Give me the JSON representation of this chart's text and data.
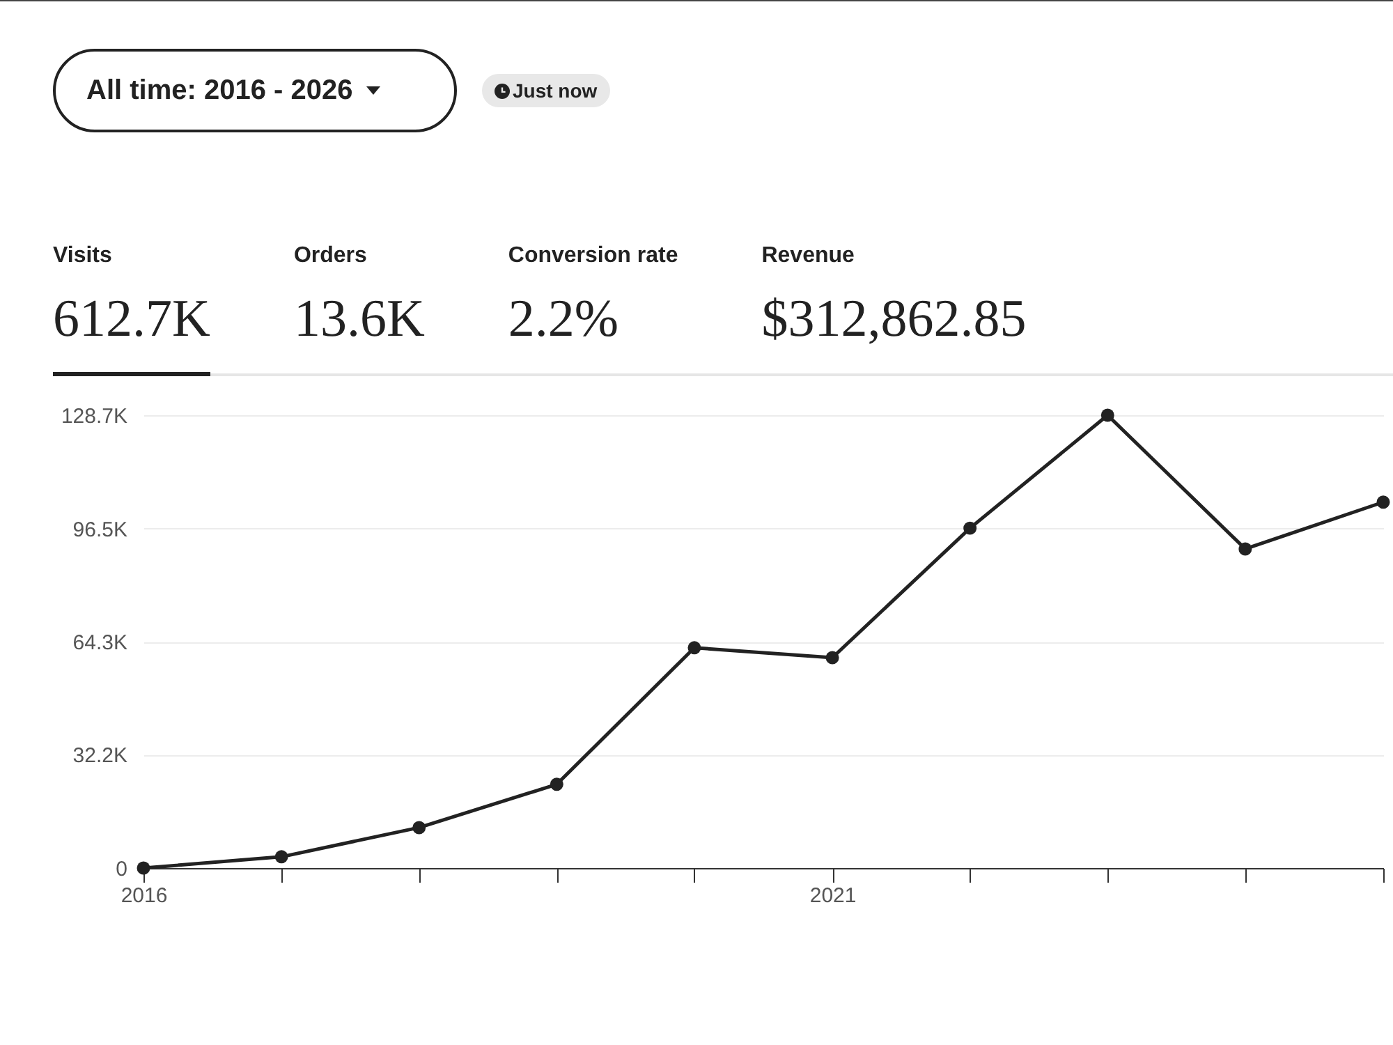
{
  "chart_data": [
    {
      "type": "other",
      "annotations": [
        "All time: 2016 - 2026",
        "Just now",
        "Visits",
        "612.7K",
        "Orders",
        "13.6K",
        "Conversion rate",
        "2.2%",
        "Revenue",
        "$312,862.85"
      ]
    },
    {
      "type": "line",
      "x": [
        "2016",
        "2017",
        "2018",
        "2019",
        "2020",
        "2021",
        "2022",
        "2023",
        "2024",
        "2025"
      ],
      "series": [
        {
          "color": "#222222",
          "values": [
            0,
            3200,
            11500,
            23800,
            62600,
            59800,
            96600,
            128700,
            90700,
            104000
          ]
        }
      ],
      "xlim": [
        "2016",
        "2025"
      ],
      "xticks": [
        {
          "value": "2016",
          "label": "2016"
        },
        {
          "value": "2017",
          "label": null
        },
        {
          "value": "2018",
          "label": null
        },
        {
          "value": "2019",
          "label": null
        },
        {
          "value": "2020",
          "label": null
        },
        {
          "value": "2021",
          "label": "2021"
        },
        {
          "value": "2022",
          "label": null
        },
        {
          "value": "2023",
          "label": null
        },
        {
          "value": "2024",
          "label": null
        },
        {
          "value": "2025",
          "label": null
        }
      ],
      "ylim": [
        0,
        128700
      ],
      "yticks": [
        0,
        {
          "value": 32200,
          "label": "32.2K"
        },
        {
          "value": 64300,
          "label": "64.3K"
        },
        {
          "value": 96500,
          "label": "96.5K"
        },
        {
          "value": 128700,
          "label": "128.7K"
        }
      ],
      "grid": "y",
      "marker": "circle",
      "line_style": "solid",
      "legend": false
    }
  ]
}
